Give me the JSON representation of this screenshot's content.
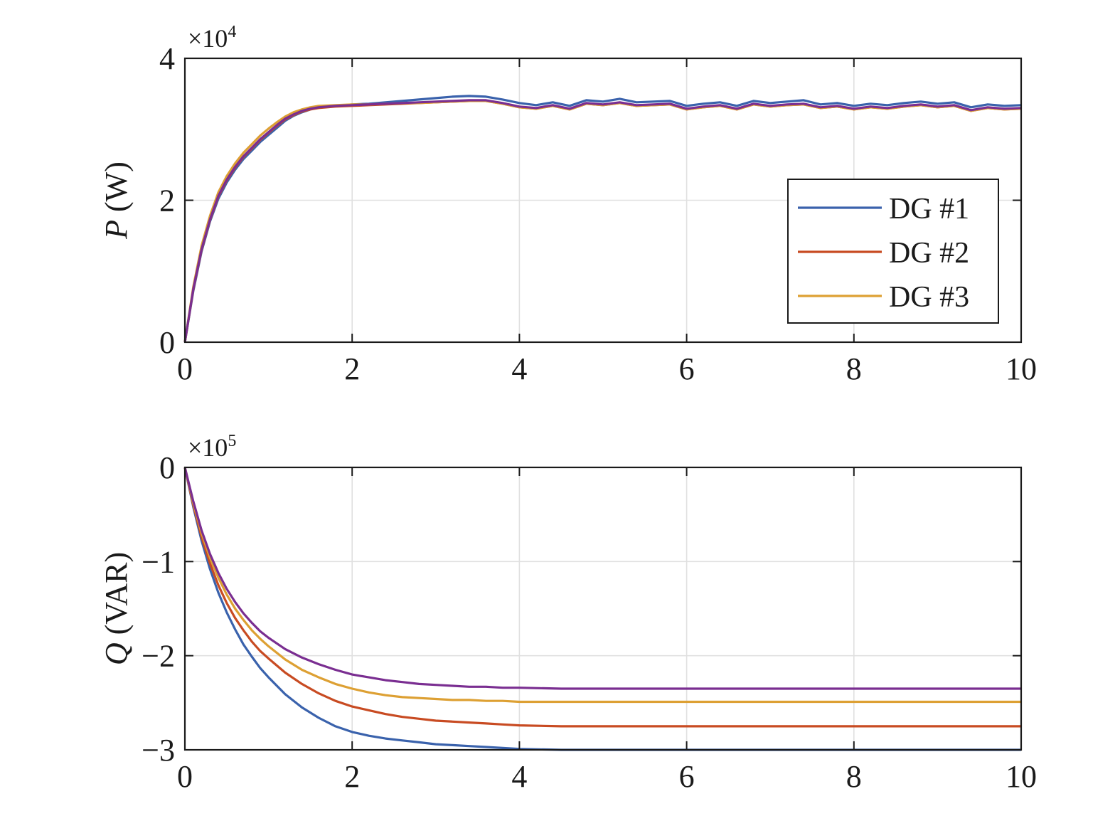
{
  "chart_data": [
    {
      "type": "line",
      "ylabel_symbol": "P",
      "ylabel_unit": " (W)",
      "exponent_base": "×10",
      "exponent_power": "4",
      "xlim": [
        0,
        10
      ],
      "ylim": [
        0,
        4
      ],
      "xticks": [
        0,
        2,
        4,
        6,
        8,
        10
      ],
      "yticks": [
        0,
        2,
        4
      ],
      "x_tick_labels": [
        "0",
        "2",
        "4",
        "6",
        "8",
        "10"
      ],
      "y_tick_labels": [
        "0",
        "2",
        "4"
      ],
      "grid": true,
      "legend": {
        "placement": "lower-right",
        "entries": [
          "DG #1",
          "DG #2",
          "DG #3"
        ]
      },
      "x": [
        0,
        0.1,
        0.2,
        0.3,
        0.4,
        0.5,
        0.6,
        0.7,
        0.8,
        0.9,
        1.0,
        1.1,
        1.2,
        1.3,
        1.4,
        1.5,
        1.6,
        1.8,
        2.0,
        2.2,
        2.4,
        2.6,
        2.8,
        3.0,
        3.2,
        3.4,
        3.6,
        3.8,
        4.0,
        4.2,
        4.4,
        4.6,
        4.8,
        5.0,
        5.2,
        5.4,
        5.6,
        5.8,
        6.0,
        6.2,
        6.4,
        6.6,
        6.8,
        7.0,
        7.2,
        7.4,
        7.6,
        7.8,
        8.0,
        8.2,
        8.4,
        8.6,
        8.8,
        9.0,
        9.2,
        9.4,
        9.6,
        9.8,
        10.0
      ],
      "series": [
        {
          "name": "DG #1",
          "color": "#3a62ac",
          "values": [
            0,
            0.72,
            1.28,
            1.7,
            2.02,
            2.25,
            2.43,
            2.58,
            2.7,
            2.82,
            2.92,
            3.02,
            3.12,
            3.19,
            3.24,
            3.28,
            3.31,
            3.33,
            3.35,
            3.36,
            3.38,
            3.4,
            3.42,
            3.44,
            3.46,
            3.47,
            3.46,
            3.42,
            3.37,
            3.34,
            3.38,
            3.33,
            3.41,
            3.39,
            3.43,
            3.38,
            3.39,
            3.4,
            3.33,
            3.36,
            3.38,
            3.33,
            3.4,
            3.37,
            3.39,
            3.41,
            3.35,
            3.37,
            3.33,
            3.36,
            3.34,
            3.37,
            3.39,
            3.36,
            3.38,
            3.31,
            3.35,
            3.33,
            3.34
          ]
        },
        {
          "name": "DG #2",
          "color": "#c84b22",
          "values": [
            0,
            0.74,
            1.3,
            1.72,
            2.05,
            2.28,
            2.46,
            2.61,
            2.73,
            2.85,
            2.95,
            3.05,
            3.14,
            3.2,
            3.25,
            3.28,
            3.3,
            3.32,
            3.33,
            3.34,
            3.35,
            3.36,
            3.37,
            3.38,
            3.39,
            3.4,
            3.4,
            3.36,
            3.31,
            3.29,
            3.33,
            3.28,
            3.36,
            3.34,
            3.37,
            3.33,
            3.34,
            3.35,
            3.28,
            3.31,
            3.33,
            3.28,
            3.35,
            3.32,
            3.34,
            3.35,
            3.3,
            3.32,
            3.28,
            3.31,
            3.29,
            3.32,
            3.34,
            3.31,
            3.33,
            3.26,
            3.3,
            3.28,
            3.29
          ]
        },
        {
          "name": "DG #3",
          "color": "#dda033",
          "values": [
            0,
            0.78,
            1.36,
            1.78,
            2.11,
            2.34,
            2.52,
            2.67,
            2.79,
            2.91,
            3.01,
            3.1,
            3.18,
            3.24,
            3.28,
            3.31,
            3.33,
            3.34,
            3.35,
            3.35,
            3.36,
            3.37,
            3.37,
            3.38,
            3.39,
            3.4,
            3.4,
            3.36,
            3.31,
            3.29,
            3.33,
            3.28,
            3.36,
            3.34,
            3.37,
            3.33,
            3.34,
            3.35,
            3.28,
            3.31,
            3.33,
            3.28,
            3.35,
            3.32,
            3.34,
            3.35,
            3.3,
            3.32,
            3.28,
            3.31,
            3.29,
            3.32,
            3.34,
            3.31,
            3.33,
            3.26,
            3.3,
            3.28,
            3.29
          ]
        },
        {
          "color": "#7a2e91",
          "values": [
            0,
            0.75,
            1.31,
            1.73,
            2.06,
            2.29,
            2.47,
            2.62,
            2.74,
            2.86,
            2.96,
            3.06,
            3.15,
            3.21,
            3.26,
            3.29,
            3.31,
            3.33,
            3.34,
            3.35,
            3.36,
            3.37,
            3.38,
            3.39,
            3.4,
            3.41,
            3.41,
            3.37,
            3.32,
            3.3,
            3.34,
            3.29,
            3.37,
            3.35,
            3.38,
            3.34,
            3.35,
            3.36,
            3.29,
            3.32,
            3.34,
            3.29,
            3.36,
            3.33,
            3.35,
            3.36,
            3.31,
            3.33,
            3.29,
            3.32,
            3.3,
            3.33,
            3.35,
            3.32,
            3.34,
            3.27,
            3.31,
            3.29,
            3.3
          ]
        }
      ]
    },
    {
      "type": "line",
      "ylabel_symbol": "Q",
      "ylabel_unit": " (VAR)",
      "exponent_base": "×10",
      "exponent_power": "5",
      "xlim": [
        0,
        10
      ],
      "ylim": [
        -3,
        0
      ],
      "xticks": [
        0,
        2,
        4,
        6,
        8,
        10
      ],
      "yticks": [
        0,
        -1,
        -2,
        -3
      ],
      "x_tick_labels": [
        "0",
        "2",
        "4",
        "6",
        "8",
        "10"
      ],
      "y_tick_labels": [
        "0",
        "−1",
        "−2",
        "−3"
      ],
      "grid": true,
      "x": [
        0,
        0.1,
        0.2,
        0.3,
        0.4,
        0.5,
        0.6,
        0.7,
        0.8,
        0.9,
        1.0,
        1.2,
        1.4,
        1.6,
        1.8,
        2.0,
        2.2,
        2.4,
        2.6,
        2.8,
        3.0,
        3.2,
        3.4,
        3.6,
        3.8,
        4.0,
        4.5,
        5.0,
        5.5,
        6.0,
        6.5,
        7.0,
        7.5,
        8.0,
        8.5,
        9.0,
        9.5,
        10.0
      ],
      "series": [
        {
          "color": "#3a62ac",
          "values": [
            0,
            -0.42,
            -0.78,
            -1.08,
            -1.33,
            -1.54,
            -1.72,
            -1.88,
            -2.01,
            -2.13,
            -2.23,
            -2.41,
            -2.55,
            -2.66,
            -2.75,
            -2.81,
            -2.85,
            -2.88,
            -2.9,
            -2.92,
            -2.94,
            -2.95,
            -2.96,
            -2.97,
            -2.98,
            -2.99,
            -3.0,
            -3.0,
            -3.0,
            -3.0,
            -3.0,
            -3.0,
            -3.0,
            -3.0,
            -3.0,
            -3.0,
            -3.0,
            -3.0
          ]
        },
        {
          "color": "#c84b22",
          "values": [
            0,
            -0.4,
            -0.74,
            -1.02,
            -1.25,
            -1.44,
            -1.6,
            -1.73,
            -1.85,
            -1.95,
            -2.03,
            -2.18,
            -2.3,
            -2.4,
            -2.48,
            -2.54,
            -2.58,
            -2.62,
            -2.65,
            -2.67,
            -2.69,
            -2.7,
            -2.71,
            -2.72,
            -2.73,
            -2.74,
            -2.75,
            -2.75,
            -2.75,
            -2.75,
            -2.75,
            -2.75,
            -2.75,
            -2.75,
            -2.75,
            -2.75,
            -2.75,
            -2.75
          ]
        },
        {
          "color": "#dda033",
          "values": [
            0,
            -0.38,
            -0.7,
            -0.96,
            -1.17,
            -1.35,
            -1.5,
            -1.62,
            -1.73,
            -1.82,
            -1.9,
            -2.04,
            -2.15,
            -2.23,
            -2.3,
            -2.35,
            -2.39,
            -2.42,
            -2.44,
            -2.45,
            -2.46,
            -2.47,
            -2.47,
            -2.48,
            -2.48,
            -2.49,
            -2.49,
            -2.49,
            -2.49,
            -2.49,
            -2.49,
            -2.49,
            -2.49,
            -2.49,
            -2.49,
            -2.49,
            -2.49,
            -2.49
          ]
        },
        {
          "color": "#7a2e91",
          "values": [
            0,
            -0.36,
            -0.67,
            -0.92,
            -1.12,
            -1.29,
            -1.43,
            -1.55,
            -1.65,
            -1.74,
            -1.81,
            -1.93,
            -2.02,
            -2.09,
            -2.15,
            -2.2,
            -2.23,
            -2.26,
            -2.28,
            -2.3,
            -2.31,
            -2.32,
            -2.33,
            -2.33,
            -2.34,
            -2.34,
            -2.35,
            -2.35,
            -2.35,
            -2.35,
            -2.35,
            -2.35,
            -2.35,
            -2.35,
            -2.35,
            -2.35,
            -2.35,
            -2.35
          ]
        }
      ]
    }
  ]
}
